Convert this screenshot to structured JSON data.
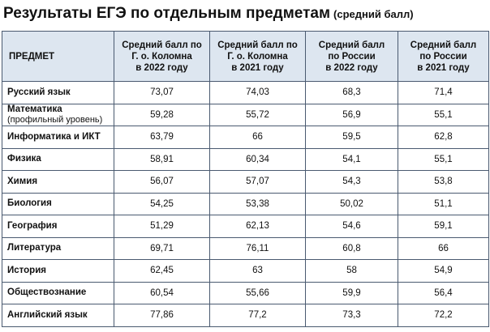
{
  "header": {
    "title": "Результаты ЕГЭ по отдельным предметам",
    "subtitle": "(средний балл)"
  },
  "table": {
    "columns": [
      [
        "ПРЕДМЕТ"
      ],
      [
        "Средний балл по",
        "Г. о. Коломна",
        "в 2022 году"
      ],
      [
        "Средний балл по",
        "Г. о. Коломна",
        "в 2021 году"
      ],
      [
        "Средний балл",
        "по России",
        "в 2022 году"
      ],
      [
        "Средний балл",
        "по России",
        "в 2021 году"
      ]
    ],
    "rows": [
      {
        "subject": [
          "Русский язык"
        ],
        "values": [
          "73,07",
          "74,03",
          "68,3",
          "71,4"
        ]
      },
      {
        "subject": [
          "Математика",
          "(профильный уровень)"
        ],
        "values": [
          "59,28",
          "55,72",
          "56,9",
          "55,1"
        ]
      },
      {
        "subject": [
          "Информатика и ИКТ"
        ],
        "values": [
          "63,79",
          "66",
          "59,5",
          "62,8"
        ]
      },
      {
        "subject": [
          "Физика"
        ],
        "values": [
          "58,91",
          "60,34",
          "54,1",
          "55,1"
        ]
      },
      {
        "subject": [
          "Химия"
        ],
        "values": [
          "56,07",
          "57,07",
          "54,3",
          "53,8"
        ]
      },
      {
        "subject": [
          "Биология"
        ],
        "values": [
          "54,25",
          "53,38",
          "50,02",
          "51,1"
        ]
      },
      {
        "subject": [
          "География"
        ],
        "values": [
          "51,29",
          "62,13",
          "54,6",
          "59,1"
        ]
      },
      {
        "subject": [
          "Литература"
        ],
        "values": [
          "69,71",
          "76,11",
          "60,8",
          "66"
        ]
      },
      {
        "subject": [
          "История"
        ],
        "values": [
          "62,45",
          "63",
          "58",
          "54,9"
        ]
      },
      {
        "subject": [
          "Обществознание"
        ],
        "values": [
          "60,54",
          "55,66",
          "59,9",
          "56,4"
        ]
      },
      {
        "subject": [
          "Английский язык"
        ],
        "values": [
          "77,86",
          "77,2",
          "73,3",
          "72,2"
        ]
      }
    ]
  }
}
